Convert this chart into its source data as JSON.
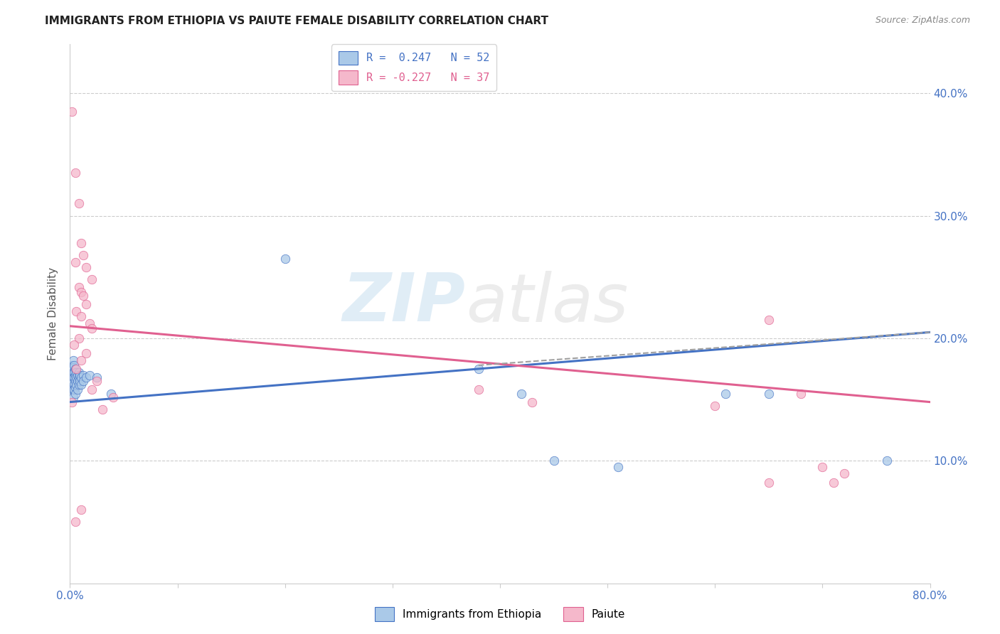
{
  "title": "IMMIGRANTS FROM ETHIOPIA VS PAIUTE FEMALE DISABILITY CORRELATION CHART",
  "source": "Source: ZipAtlas.com",
  "ylabel": "Female Disability",
  "right_yticks": [
    "10.0%",
    "20.0%",
    "30.0%",
    "40.0%"
  ],
  "right_ytick_vals": [
    0.1,
    0.2,
    0.3,
    0.4
  ],
  "xlim": [
    0.0,
    0.8
  ],
  "ylim": [
    0.0,
    0.44
  ],
  "legend_r1": "R =  0.247   N = 52",
  "legend_r2": "R = -0.227   N = 37",
  "blue_color": "#aac9e8",
  "pink_color": "#f5b8cb",
  "trendline_blue": "#4472c4",
  "trendline_pink": "#e06090",
  "trendline_dashed_color": "#a0a0a0",
  "watermark_zip": "ZIP",
  "watermark_atlas": "atlas",
  "blue_scatter": [
    [
      0.001,
      0.17
    ],
    [
      0.001,
      0.175
    ],
    [
      0.001,
      0.165
    ],
    [
      0.002,
      0.178
    ],
    [
      0.002,
      0.172
    ],
    [
      0.002,
      0.168
    ],
    [
      0.002,
      0.162
    ],
    [
      0.002,
      0.158
    ],
    [
      0.003,
      0.182
    ],
    [
      0.003,
      0.176
    ],
    [
      0.003,
      0.172
    ],
    [
      0.003,
      0.168
    ],
    [
      0.003,
      0.164
    ],
    [
      0.003,
      0.158
    ],
    [
      0.003,
      0.152
    ],
    [
      0.004,
      0.178
    ],
    [
      0.004,
      0.172
    ],
    [
      0.004,
      0.168
    ],
    [
      0.004,
      0.162
    ],
    [
      0.004,
      0.158
    ],
    [
      0.005,
      0.175
    ],
    [
      0.005,
      0.17
    ],
    [
      0.005,
      0.165
    ],
    [
      0.005,
      0.16
    ],
    [
      0.005,
      0.155
    ],
    [
      0.006,
      0.172
    ],
    [
      0.006,
      0.168
    ],
    [
      0.006,
      0.162
    ],
    [
      0.007,
      0.17
    ],
    [
      0.007,
      0.165
    ],
    [
      0.007,
      0.158
    ],
    [
      0.008,
      0.172
    ],
    [
      0.008,
      0.168
    ],
    [
      0.008,
      0.162
    ],
    [
      0.009,
      0.17
    ],
    [
      0.009,
      0.165
    ],
    [
      0.01,
      0.168
    ],
    [
      0.01,
      0.162
    ],
    [
      0.012,
      0.17
    ],
    [
      0.012,
      0.165
    ],
    [
      0.015,
      0.168
    ],
    [
      0.018,
      0.17
    ],
    [
      0.025,
      0.168
    ],
    [
      0.038,
      0.155
    ],
    [
      0.2,
      0.265
    ],
    [
      0.38,
      0.175
    ],
    [
      0.42,
      0.155
    ],
    [
      0.45,
      0.1
    ],
    [
      0.51,
      0.095
    ],
    [
      0.61,
      0.155
    ],
    [
      0.65,
      0.155
    ],
    [
      0.76,
      0.1
    ]
  ],
  "pink_scatter": [
    [
      0.002,
      0.385
    ],
    [
      0.005,
      0.335
    ],
    [
      0.008,
      0.31
    ],
    [
      0.01,
      0.278
    ],
    [
      0.012,
      0.268
    ],
    [
      0.005,
      0.262
    ],
    [
      0.015,
      0.258
    ],
    [
      0.02,
      0.248
    ],
    [
      0.008,
      0.242
    ],
    [
      0.01,
      0.238
    ],
    [
      0.012,
      0.235
    ],
    [
      0.015,
      0.228
    ],
    [
      0.006,
      0.222
    ],
    [
      0.01,
      0.218
    ],
    [
      0.018,
      0.212
    ],
    [
      0.02,
      0.208
    ],
    [
      0.008,
      0.2
    ],
    [
      0.004,
      0.195
    ],
    [
      0.015,
      0.188
    ],
    [
      0.01,
      0.182
    ],
    [
      0.006,
      0.175
    ],
    [
      0.025,
      0.165
    ],
    [
      0.02,
      0.158
    ],
    [
      0.04,
      0.152
    ],
    [
      0.002,
      0.148
    ],
    [
      0.03,
      0.142
    ],
    [
      0.005,
      0.05
    ],
    [
      0.01,
      0.06
    ],
    [
      0.38,
      0.158
    ],
    [
      0.43,
      0.148
    ],
    [
      0.6,
      0.145
    ],
    [
      0.65,
      0.215
    ],
    [
      0.68,
      0.155
    ],
    [
      0.7,
      0.095
    ],
    [
      0.72,
      0.09
    ],
    [
      0.71,
      0.082
    ],
    [
      0.65,
      0.082
    ]
  ],
  "blue_trend_x": [
    0.0,
    0.8
  ],
  "blue_trend_y": [
    0.148,
    0.205
  ],
  "pink_trend_x": [
    0.0,
    0.8
  ],
  "pink_trend_y": [
    0.21,
    0.148
  ],
  "dash_trend_x": [
    0.38,
    0.8
  ],
  "dash_trend_y": [
    0.178,
    0.205
  ],
  "background_color": "#ffffff",
  "grid_color": "#cccccc"
}
